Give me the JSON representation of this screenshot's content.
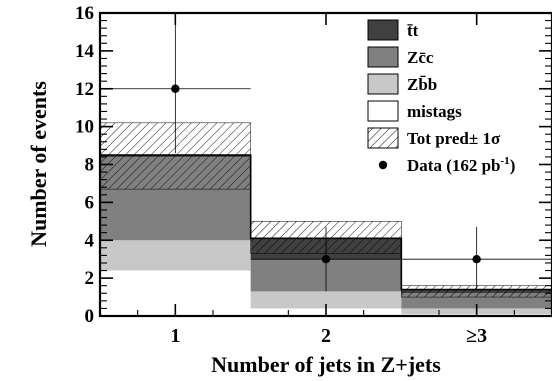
{
  "chart_data": {
    "type": "bar",
    "stacked": true,
    "xlabel": "Number of jets in Z+jets",
    "ylabel": "Number of events",
    "categories": [
      "1",
      "2",
      "≥3"
    ],
    "ylim": [
      0,
      16
    ],
    "yticks": [
      0,
      2,
      4,
      6,
      8,
      10,
      12,
      14,
      16
    ],
    "grid": false,
    "legend_position": "top-right",
    "series": [
      {
        "name": "mistags",
        "color": "#ffffff",
        "values": [
          2.4,
          0.4,
          0.1
        ]
      },
      {
        "name": "Zb̄b",
        "color": "#c8c8c8",
        "values": [
          1.6,
          0.9,
          0.3
        ]
      },
      {
        "name": "Zc̄c",
        "color": "#808080",
        "values": [
          4.4,
          1.7,
          0.8
        ]
      },
      {
        "name": "t̄t",
        "color": "#404040",
        "values": [
          0.1,
          1.1,
          0.2
        ]
      }
    ],
    "uncertainty_band": {
      "name": "Tot pred± 1σ",
      "values": [
        [
          6.7,
          10.2
        ],
        [
          3.3,
          5.0
        ],
        [
          1.0,
          1.6
        ]
      ]
    },
    "data_points": {
      "name": "Data (162 pb",
      "name_sup": "-1",
      "name_suffix": ")",
      "values": [
        12,
        3,
        3
      ],
      "err_low": [
        3.4,
        1.7,
        1.7
      ],
      "err_high": [
        3.4,
        1.7,
        1.7
      ]
    },
    "legend_order": [
      "t̄t",
      "Zc̄c",
      "Zb̄b",
      "mistags",
      "Tot pred± 1σ",
      "Data (162 pb"
    ]
  }
}
